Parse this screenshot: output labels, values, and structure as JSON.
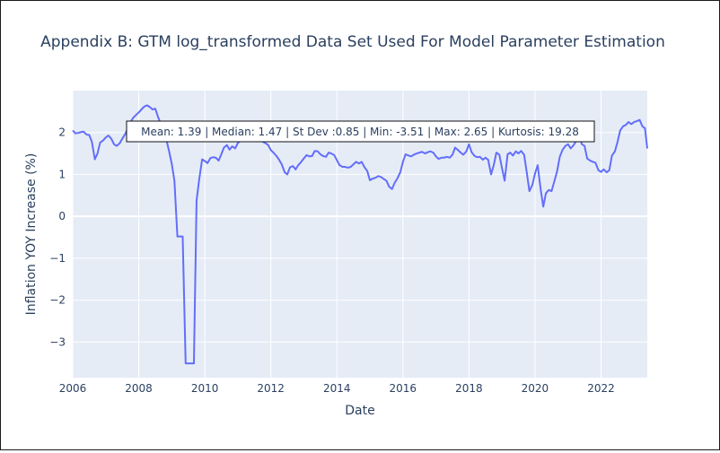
{
  "chart_data": {
    "type": "line",
    "title": "Appendix B: GTM log_transformed Data Set Used For Model Parameter Estimation",
    "xlabel": "Date",
    "ylabel": "Inflation YOY Increase (%)",
    "xlim": [
      2006.0,
      2023.4
    ],
    "ylim": [
      -3.85,
      3.0
    ],
    "x_ticks": [
      2006,
      2008,
      2010,
      2012,
      2014,
      2016,
      2018,
      2020,
      2022
    ],
    "y_ticks": [
      -3,
      -2,
      -1,
      0,
      1,
      2
    ],
    "y_tick_labels": [
      "−3",
      "−2",
      "−1",
      "0",
      "1",
      "2"
    ],
    "line_color": "#636efa",
    "plot_background": "#e5ecf6",
    "grid": true,
    "annotation": "Mean: 1.39 | Median: 1.47 | St Dev :0.85 | Min: -3.51 | Max: 2.65 | Kurtosis: 19.28",
    "series": [
      {
        "x": [
          2006.0,
          2006.08,
          2006.17,
          2006.25,
          2006.33,
          2006.42,
          2006.5,
          2006.58,
          2006.67,
          2006.75,
          2006.83,
          2006.92,
          2007.0,
          2007.08,
          2007.17,
          2007.25,
          2007.33,
          2007.42,
          2007.5,
          2007.58,
          2007.67,
          2007.75,
          2007.83,
          2007.92,
          2008.0,
          2008.08,
          2008.17,
          2008.25,
          2008.33,
          2008.42,
          2008.5,
          2008.58,
          2008.67,
          2008.75,
          2008.83,
          2008.92,
          2009.0,
          2009.08,
          2009.17,
          2009.25,
          2009.33,
          2009.42,
          2009.5,
          2009.58,
          2009.67,
          2009.75,
          2009.83,
          2009.92,
          2010.0,
          2010.08,
          2010.17,
          2010.25,
          2010.33,
          2010.42,
          2010.5,
          2010.58,
          2010.67,
          2010.75,
          2010.83,
          2010.92,
          2011.0,
          2011.08,
          2011.17,
          2011.25,
          2011.33,
          2011.42,
          2011.5,
          2011.58,
          2011.67,
          2011.75,
          2011.83,
          2011.92,
          2012.0,
          2012.08,
          2012.17,
          2012.25,
          2012.33,
          2012.42,
          2012.5,
          2012.58,
          2012.67,
          2012.75,
          2012.83,
          2012.92,
          2013.0,
          2013.08,
          2013.17,
          2013.25,
          2013.33,
          2013.42,
          2013.5,
          2013.58,
          2013.67,
          2013.75,
          2013.83,
          2013.92,
          2014.0,
          2014.08,
          2014.17,
          2014.25,
          2014.33,
          2014.42,
          2014.5,
          2014.58,
          2014.67,
          2014.75,
          2014.83,
          2014.92,
          2015.0,
          2015.08,
          2015.17,
          2015.25,
          2015.33,
          2015.42,
          2015.5,
          2015.58,
          2015.67,
          2015.75,
          2015.83,
          2015.92,
          2016.0,
          2016.08,
          2016.17,
          2016.25,
          2016.33,
          2016.42,
          2016.5,
          2016.58,
          2016.67,
          2016.75,
          2016.83,
          2016.92,
          2017.0,
          2017.08,
          2017.17,
          2017.25,
          2017.33,
          2017.42,
          2017.5,
          2017.58,
          2017.67,
          2017.75,
          2017.83,
          2017.92,
          2018.0,
          2018.08,
          2018.17,
          2018.25,
          2018.33,
          2018.42,
          2018.5,
          2018.58,
          2018.67,
          2018.75,
          2018.83,
          2018.92,
          2019.0,
          2019.08,
          2019.17,
          2019.25,
          2019.33,
          2019.42,
          2019.5,
          2019.58,
          2019.67,
          2019.75,
          2019.83,
          2019.92,
          2020.0,
          2020.08,
          2020.17,
          2020.25,
          2020.33,
          2020.42,
          2020.5,
          2020.58,
          2020.67,
          2020.75,
          2020.83,
          2020.92,
          2021.0,
          2021.08,
          2021.17,
          2021.25,
          2021.33,
          2021.42,
          2021.5,
          2021.58,
          2021.67,
          2021.75,
          2021.83,
          2021.92,
          2022.0,
          2022.08,
          2022.17,
          2022.25,
          2022.33,
          2022.42,
          2022.5,
          2022.58,
          2022.67,
          2022.75,
          2022.83,
          2022.92,
          2023.0,
          2023.08,
          2023.17,
          2023.25,
          2023.33,
          2023.4
        ],
        "values": [
          2.05,
          1.98,
          1.99,
          2.01,
          2.02,
          1.95,
          1.94,
          1.78,
          1.36,
          1.5,
          1.76,
          1.81,
          1.88,
          1.93,
          1.85,
          1.72,
          1.68,
          1.74,
          1.85,
          1.95,
          2.1,
          2.25,
          2.35,
          2.42,
          2.48,
          2.55,
          2.62,
          2.65,
          2.61,
          2.55,
          2.57,
          2.38,
          2.2,
          2.02,
          1.85,
          1.55,
          1.25,
          0.85,
          -0.48,
          -0.48,
          -0.48,
          -3.51,
          -3.51,
          -3.51,
          -3.51,
          0.37,
          0.88,
          1.36,
          1.32,
          1.27,
          1.39,
          1.41,
          1.4,
          1.33,
          1.48,
          1.64,
          1.7,
          1.59,
          1.67,
          1.62,
          1.75,
          1.8,
          1.98,
          2.05,
          2.2,
          2.18,
          2.12,
          2.0,
          1.85,
          1.78,
          1.75,
          1.7,
          1.58,
          1.52,
          1.44,
          1.35,
          1.24,
          1.05,
          1.0,
          1.17,
          1.2,
          1.12,
          1.22,
          1.3,
          1.38,
          1.46,
          1.43,
          1.44,
          1.56,
          1.55,
          1.48,
          1.44,
          1.42,
          1.52,
          1.5,
          1.46,
          1.34,
          1.22,
          1.18,
          1.18,
          1.16,
          1.18,
          1.24,
          1.3,
          1.26,
          1.3,
          1.18,
          1.08,
          0.86,
          0.9,
          0.92,
          0.96,
          0.94,
          0.89,
          0.85,
          0.71,
          0.65,
          0.8,
          0.9,
          1.05,
          1.3,
          1.48,
          1.45,
          1.43,
          1.47,
          1.5,
          1.52,
          1.54,
          1.5,
          1.53,
          1.55,
          1.52,
          1.43,
          1.37,
          1.4,
          1.4,
          1.42,
          1.4,
          1.47,
          1.64,
          1.58,
          1.52,
          1.47,
          1.55,
          1.72,
          1.53,
          1.44,
          1.41,
          1.42,
          1.35,
          1.4,
          1.35,
          1.0,
          1.22,
          1.52,
          1.47,
          1.15,
          0.85,
          1.48,
          1.52,
          1.45,
          1.55,
          1.5,
          1.56,
          1.47,
          1.05,
          0.6,
          0.75,
          1.02,
          1.22,
          0.65,
          0.23,
          0.55,
          0.63,
          0.6,
          0.82,
          1.08,
          1.42,
          1.58,
          1.68,
          1.72,
          1.62,
          1.7,
          1.8,
          1.92,
          1.72,
          1.68,
          1.38,
          1.33,
          1.3,
          1.28,
          1.1,
          1.06,
          1.12,
          1.05,
          1.1,
          1.45,
          1.55,
          1.78,
          2.05,
          2.15,
          2.18,
          2.25,
          2.2,
          2.25,
          2.27,
          2.3,
          2.15,
          2.1,
          1.62
        ]
      }
    ]
  }
}
